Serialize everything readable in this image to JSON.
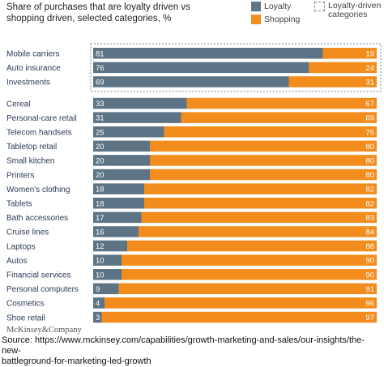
{
  "title": {
    "line1": "Share of purchases that are loyalty driven vs",
    "line2": "shopping driven, selected categories, %"
  },
  "legend": {
    "loyalty": "Loyalty",
    "shopping": "Shopping",
    "loyalty_driven_line1": "Loyalty-driven",
    "loyalty_driven_line2": "categories"
  },
  "colors": {
    "loyalty": "#5d7486",
    "shopping": "#f28c1c",
    "dashed_box": "#7a8a99"
  },
  "chart_data": {
    "type": "bar",
    "orientation": "horizontal",
    "stacked": true,
    "xlim": [
      0,
      100
    ],
    "categories": [
      "Mobile carriers",
      "Auto insurance",
      "Investments",
      "Cereal",
      "Personal-care retail",
      "Telecom handsets",
      "Tabletop retail",
      "Small kitchen",
      "Printers",
      "Women's clothing",
      "Tablets",
      "Bath accessories",
      "Cruise lines",
      "Laptops",
      "Autos",
      "Financial services",
      "Personal computers",
      "Cosmetics",
      "Shoe retail"
    ],
    "loyalty_driven_count": 3,
    "series": [
      {
        "name": "Loyalty",
        "values": [
          81,
          76,
          69,
          33,
          31,
          25,
          20,
          20,
          20,
          18,
          18,
          17,
          16,
          12,
          10,
          10,
          9,
          4,
          3
        ]
      },
      {
        "name": "Shopping",
        "values": [
          19,
          24,
          31,
          67,
          69,
          75,
          80,
          80,
          80,
          82,
          82,
          83,
          84,
          88,
          90,
          90,
          91,
          96,
          97
        ]
      }
    ]
  },
  "footer": {
    "company": "McKinsey&Company",
    "source_line1": "Source: https://www.mckinsey.com/capabilities/growth-marketing-and-sales/our-insights/the-new-",
    "source_line2": "battleground-for-marketing-led-growth"
  }
}
